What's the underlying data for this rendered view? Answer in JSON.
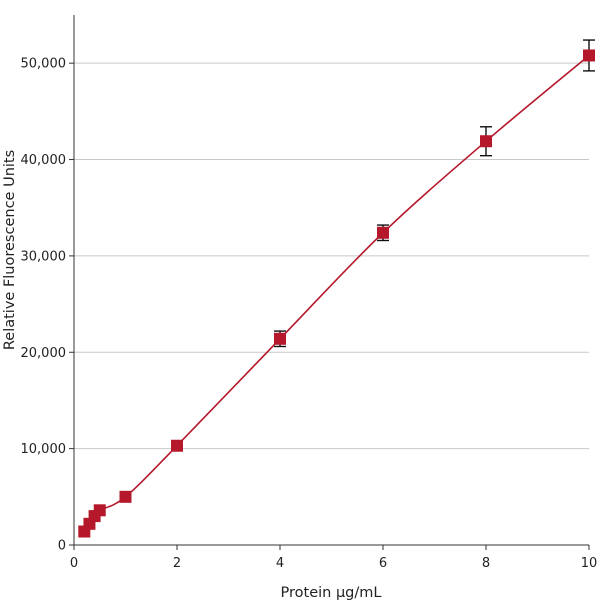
{
  "chart_data": {
    "type": "scatter",
    "title": "",
    "xlabel": "Protein µg/mL",
    "ylabel": "Relative Fluorescence Units",
    "xlim": [
      0,
      10
    ],
    "ylim": [
      0,
      55000
    ],
    "x_ticks": [
      0,
      2,
      4,
      6,
      8,
      10
    ],
    "x_tick_labels": [
      "0",
      "2",
      "4",
      "6",
      "8",
      "10"
    ],
    "y_ticks": [
      0,
      10000,
      20000,
      30000,
      40000,
      50000
    ],
    "y_tick_labels": [
      "0",
      "10,000",
      "20,000",
      "30,000",
      "40,000",
      "50,000"
    ],
    "grid": "horizontal",
    "legend": "none",
    "series": [
      {
        "color": "#b5182b",
        "marker": "square",
        "points": [
          {
            "x": 0.2,
            "y": 1400,
            "err": 0
          },
          {
            "x": 0.3,
            "y": 2200,
            "err": 0
          },
          {
            "x": 0.4,
            "y": 3000,
            "err": 0
          },
          {
            "x": 0.5,
            "y": 3600,
            "err": 0
          },
          {
            "x": 1,
            "y": 5000,
            "err": 0
          },
          {
            "x": 2,
            "y": 10300,
            "err": 0
          },
          {
            "x": 4,
            "y": 21400,
            "err": 800
          },
          {
            "x": 6,
            "y": 32400,
            "err": 800
          },
          {
            "x": 8,
            "y": 41900,
            "err": 1500
          },
          {
            "x": 10,
            "y": 50800,
            "err": 1600
          }
        ]
      }
    ]
  }
}
